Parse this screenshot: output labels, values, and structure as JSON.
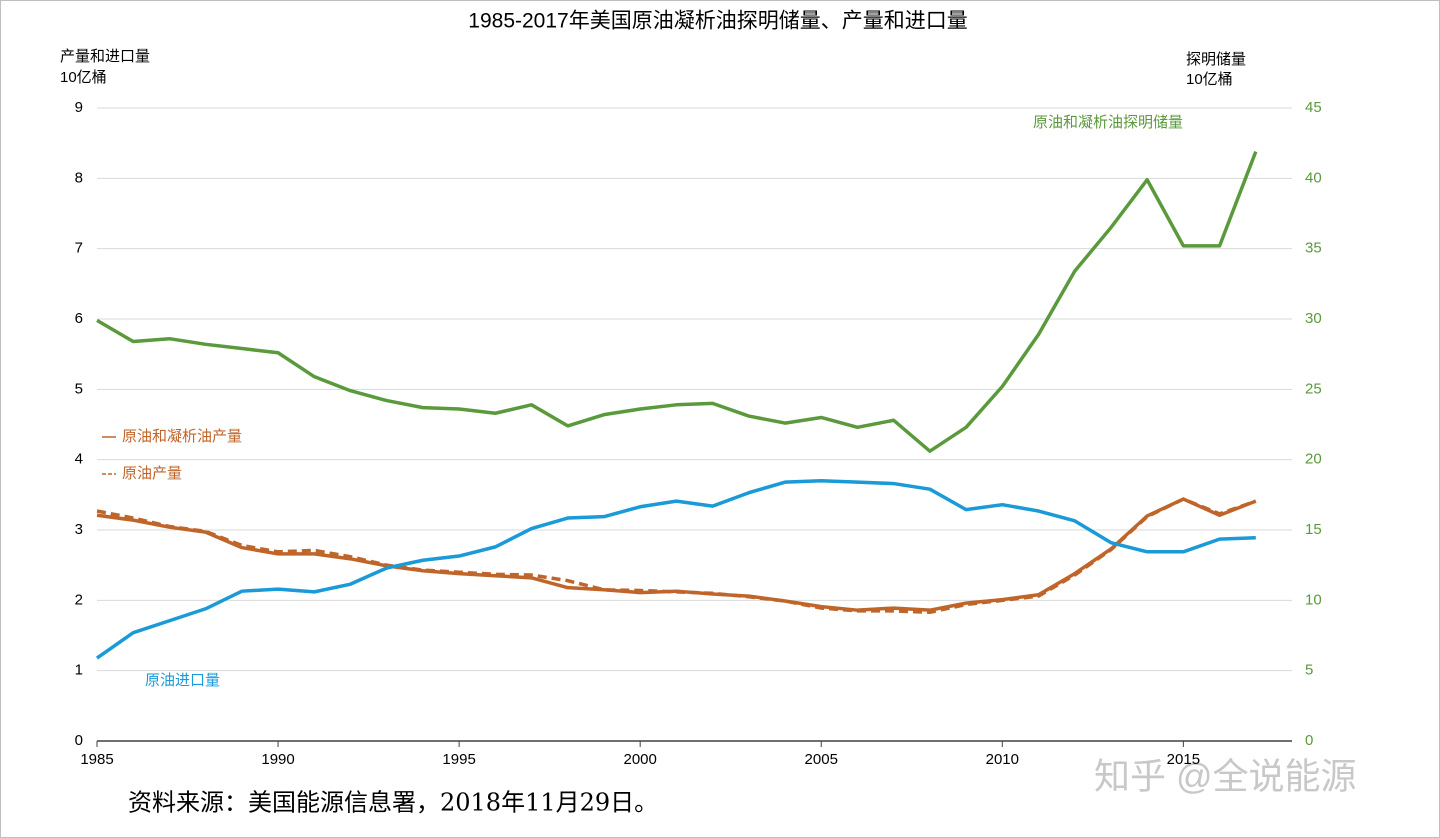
{
  "chart_data": {
    "type": "line",
    "title": "1985-2017年美国原油凝析油探明储量、产量和进口量",
    "ylabel": "产量和进口量",
    "ylabel_unit": "10亿桶",
    "y2label": "探明储量",
    "y2label_unit": "10亿桶",
    "source": "资料来源：美国能源信息署，2018年11月29日。",
    "watermark": "知乎 @全说能源",
    "x": [
      1985,
      1986,
      1987,
      1988,
      1989,
      1990,
      1991,
      1992,
      1993,
      1994,
      1995,
      1996,
      1997,
      1998,
      1999,
      2000,
      2001,
      2002,
      2003,
      2004,
      2005,
      2006,
      2007,
      2008,
      2009,
      2010,
      2011,
      2012,
      2013,
      2014,
      2015,
      2016,
      2017
    ],
    "xlim": [
      1985,
      2018
    ],
    "xticks": [
      1985,
      1990,
      1995,
      2000,
      2005,
      2010,
      2015
    ],
    "ylim": [
      0,
      9
    ],
    "yticks": [
      0,
      1,
      2,
      3,
      4,
      5,
      6,
      7,
      8,
      9
    ],
    "y2lim": [
      0,
      45
    ],
    "y2ticks": [
      0,
      5,
      10,
      15,
      20,
      25,
      30,
      35,
      40,
      45
    ],
    "grid": true,
    "series": [
      {
        "name": "原油和凝析油探明储量",
        "color": "#5b9a3c",
        "axis": "y2",
        "dash": false,
        "values": [
          29.9,
          28.4,
          28.6,
          28.2,
          27.9,
          27.6,
          25.9,
          24.9,
          24.2,
          23.7,
          23.6,
          23.3,
          23.9,
          22.4,
          23.2,
          23.6,
          23.9,
          24.0,
          23.1,
          22.6,
          23.0,
          22.3,
          22.8,
          20.6,
          22.3,
          25.2,
          28.9,
          33.4,
          36.5,
          39.9,
          35.2,
          35.2,
          41.9
        ]
      },
      {
        "name": "原油和凝析油产量",
        "color": "#c0652a",
        "axis": "y",
        "dash": false,
        "values": [
          3.21,
          3.14,
          3.04,
          2.97,
          2.75,
          2.66,
          2.66,
          2.59,
          2.49,
          2.42,
          2.38,
          2.35,
          2.32,
          2.18,
          2.15,
          2.11,
          2.13,
          2.09,
          2.06,
          1.99,
          1.91,
          1.86,
          1.89,
          1.86,
          1.96,
          2.01,
          2.08,
          2.38,
          2.73,
          3.2,
          3.44,
          3.21,
          3.41
        ]
      },
      {
        "name": "原油产量",
        "color": "#c0652a",
        "axis": "y",
        "dash": true,
        "values": [
          3.27,
          3.17,
          3.05,
          2.98,
          2.78,
          2.69,
          2.71,
          2.62,
          2.5,
          2.43,
          2.4,
          2.37,
          2.36,
          2.28,
          2.15,
          2.14,
          2.12,
          2.1,
          2.05,
          1.99,
          1.89,
          1.85,
          1.85,
          1.83,
          1.94,
          2.0,
          2.06,
          2.36,
          2.72,
          3.19,
          3.44,
          3.23,
          3.41
        ]
      },
      {
        "name": "原油进口量",
        "color": "#1a9ad6",
        "axis": "y",
        "dash": false,
        "values": [
          1.18,
          1.54,
          1.71,
          1.88,
          2.13,
          2.16,
          2.12,
          2.23,
          2.46,
          2.57,
          2.63,
          2.76,
          3.02,
          3.17,
          3.19,
          3.33,
          3.41,
          3.34,
          3.53,
          3.68,
          3.7,
          3.68,
          3.66,
          3.58,
          3.29,
          3.36,
          3.27,
          3.13,
          2.82,
          2.69,
          2.69,
          2.87,
          2.89
        ]
      }
    ]
  }
}
